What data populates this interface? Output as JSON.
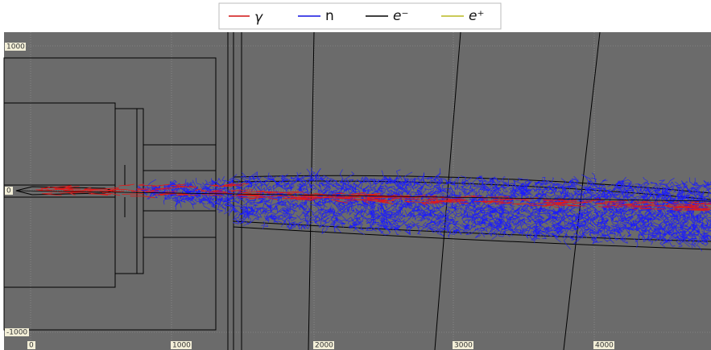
{
  "legend": {
    "items": [
      "γ",
      "n",
      "e⁻",
      "e⁺"
    ]
  },
  "axes": {
    "y_labels": [
      "1000",
      "0",
      "-1000"
    ],
    "x_labels": [
      "0",
      "1000",
      "2000",
      "3000",
      "4000"
    ]
  }
}
